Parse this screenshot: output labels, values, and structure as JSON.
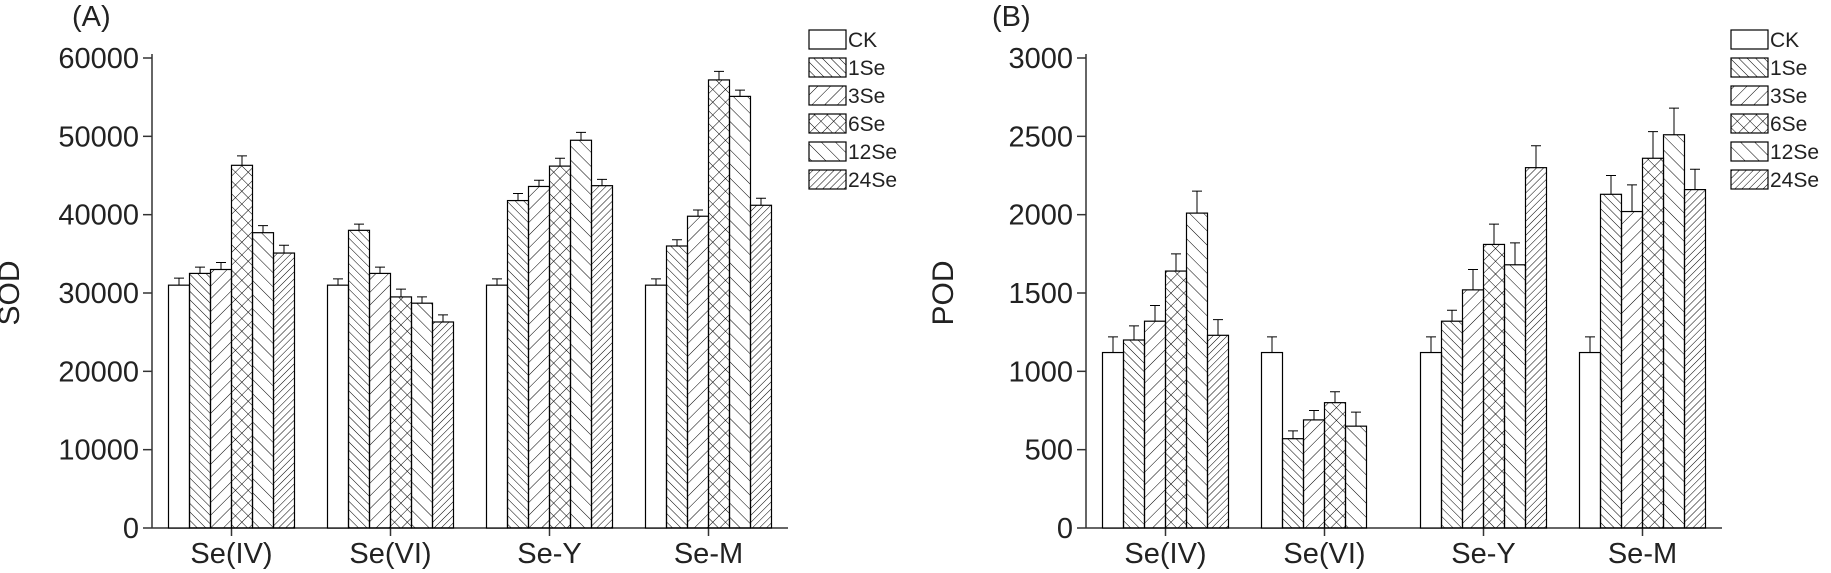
{
  "chart_data": [
    {
      "type": "bar",
      "panel_label": "(A)",
      "y_label": "SOD",
      "categories": [
        "Se(IV)",
        "Se(VI)",
        "Se-Y",
        "Se-M"
      ],
      "ylim": [
        0,
        60000
      ],
      "yticks": [
        0,
        10000,
        20000,
        30000,
        40000,
        50000,
        60000
      ],
      "series": [
        {
          "name": "CK",
          "color": "#000000",
          "hatch": "none",
          "values": [
            31000,
            31000,
            31000,
            31000
          ],
          "errors": [
            900,
            800,
            800,
            800
          ]
        },
        {
          "name": "1Se",
          "color": "#000000",
          "hatch": "dense-back",
          "values": [
            32500,
            38000,
            41800,
            36000
          ],
          "errors": [
            800,
            800,
            900,
            800
          ]
        },
        {
          "name": "3Se",
          "color": "#000000",
          "hatch": "fwd",
          "values": [
            33000,
            32500,
            43600,
            39800
          ],
          "errors": [
            900,
            800,
            800,
            800
          ]
        },
        {
          "name": "6Se",
          "color": "#000000",
          "hatch": "cross",
          "values": [
            46300,
            29500,
            46200,
            57200
          ],
          "errors": [
            1200,
            1000,
            1000,
            1100
          ]
        },
        {
          "name": "12Se",
          "color": "#000000",
          "hatch": "back",
          "values": [
            37700,
            28700,
            49500,
            55100
          ],
          "errors": [
            900,
            800,
            1000,
            800
          ]
        },
        {
          "name": "24Se",
          "color": "#000000",
          "hatch": "dense-fwd",
          "values": [
            35100,
            26300,
            43700,
            41200
          ],
          "errors": [
            1000,
            900,
            800,
            900
          ]
        }
      ]
    },
    {
      "type": "bar",
      "panel_label": "(B)",
      "y_label": "POD",
      "categories": [
        "Se(IV)",
        "Se(VI)",
        "Se-Y",
        "Se-M"
      ],
      "ylim": [
        0,
        3000
      ],
      "yticks": [
        0,
        500,
        1000,
        1500,
        2000,
        2500,
        3000
      ],
      "series": [
        {
          "name": "CK",
          "color": "#000000",
          "hatch": "none",
          "values": [
            1120,
            1120,
            1120,
            1120
          ],
          "errors": [
            100,
            100,
            100,
            100
          ]
        },
        {
          "name": "1Se",
          "color": "#000000",
          "hatch": "dense-back",
          "values": [
            1200,
            570,
            1320,
            2130
          ],
          "errors": [
            90,
            50,
            70,
            120
          ]
        },
        {
          "name": "3Se",
          "color": "#000000",
          "hatch": "fwd",
          "values": [
            1320,
            690,
            1520,
            2020
          ],
          "errors": [
            100,
            60,
            130,
            170
          ]
        },
        {
          "name": "6Se",
          "color": "#000000",
          "hatch": "cross",
          "values": [
            1640,
            800,
            1810,
            2360
          ],
          "errors": [
            110,
            70,
            130,
            170
          ]
        },
        {
          "name": "12Se",
          "color": "#000000",
          "hatch": "back",
          "values": [
            2010,
            650,
            1680,
            2510
          ],
          "errors": [
            140,
            90,
            140,
            170
          ]
        },
        {
          "name": "24Se",
          "color": "#000000",
          "hatch": "dense-fwd",
          "values": [
            1230,
            null,
            2300,
            2160
          ],
          "errors": [
            100,
            null,
            140,
            130
          ]
        }
      ]
    }
  ]
}
